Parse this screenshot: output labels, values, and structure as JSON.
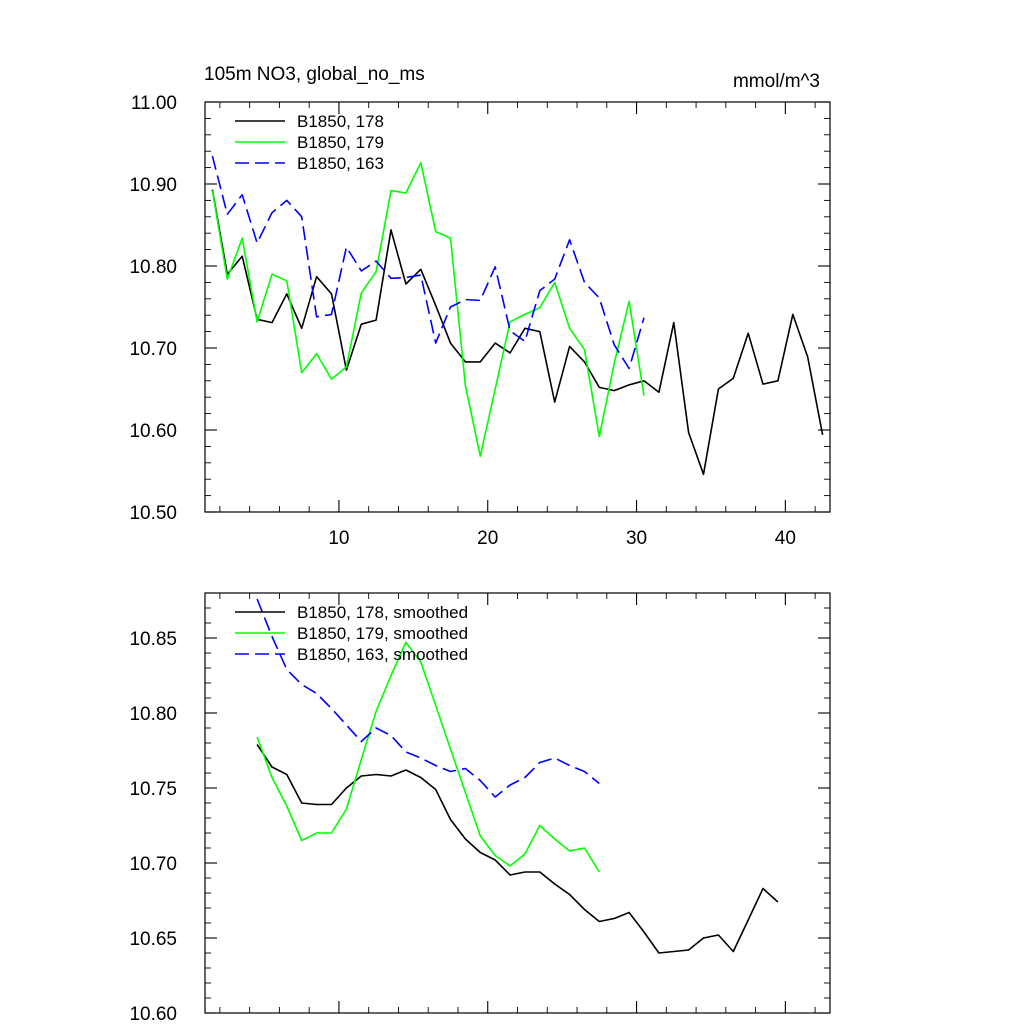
{
  "chart_data": [
    {
      "type": "line",
      "title": "105m NO3, global_no_ms",
      "units": "mmol/m^3",
      "xlim": [
        1,
        43
      ],
      "ylim": [
        10.5,
        11.0
      ],
      "xticks": [
        10,
        20,
        30,
        40
      ],
      "xtick_labels": [
        "10",
        "20",
        "30",
        "40"
      ],
      "yticks": [
        10.5,
        10.6,
        10.7,
        10.8,
        10.9,
        11.0
      ],
      "ytick_labels": [
        "10.50",
        "10.60",
        "10.70",
        "10.80",
        "10.90",
        "11.00"
      ],
      "series": [
        {
          "name": "B1850, 178",
          "color": "#000000",
          "dash": "solid",
          "x": [
            1.5,
            2.5,
            3.5,
            4.5,
            5.5,
            6.5,
            7.5,
            8.5,
            9.5,
            10.5,
            11.5,
            12.5,
            13.5,
            14.5,
            15.5,
            16.5,
            17.5,
            18.5,
            19.5,
            20.5,
            21.5,
            22.5,
            23.5,
            24.5,
            25.5,
            26.5,
            27.5,
            28.5,
            29.5,
            30.5,
            31.5,
            32.5,
            33.5,
            34.5,
            35.5,
            36.5,
            37.5,
            38.5,
            39.5,
            40.5,
            41.5,
            42.5
          ],
          "values": [
            10.893,
            10.79,
            10.812,
            10.735,
            10.731,
            10.766,
            10.724,
            10.787,
            10.766,
            10.673,
            10.729,
            10.734,
            10.844,
            10.778,
            10.796,
            10.752,
            10.706,
            10.683,
            10.683,
            10.706,
            10.694,
            10.724,
            10.72,
            10.634,
            10.702,
            10.683,
            10.652,
            10.648,
            10.655,
            10.66,
            10.646,
            10.731,
            10.597,
            10.546,
            10.65,
            10.663,
            10.718,
            10.656,
            10.66,
            10.741,
            10.689,
            10.594
          ]
        },
        {
          "name": "B1850, 179",
          "color": "#00ff00",
          "dash": "solid",
          "x": [
            1.5,
            2.5,
            3.5,
            4.5,
            5.5,
            6.5,
            7.5,
            8.5,
            9.5,
            10.5,
            11.5,
            12.5,
            13.5,
            14.5,
            15.5,
            16.5,
            17.5,
            18.5,
            19.5,
            20.5,
            21.5,
            22.5,
            23.5,
            24.5,
            25.5,
            26.5,
            27.5,
            28.5,
            29.5,
            30.5
          ],
          "values": [
            10.892,
            10.784,
            10.834,
            10.732,
            10.79,
            10.782,
            10.67,
            10.693,
            10.662,
            10.677,
            10.767,
            10.793,
            10.892,
            10.889,
            10.926,
            10.842,
            10.834,
            10.654,
            10.568,
            10.65,
            10.732,
            10.741,
            10.749,
            10.78,
            10.724,
            10.698,
            10.592,
            10.681,
            10.757,
            10.642
          ]
        },
        {
          "name": "B1850, 163",
          "color": "#0000ff",
          "dash": "dashed",
          "x": [
            1.5,
            2.5,
            3.5,
            4.5,
            5.5,
            6.5,
            7.5,
            8.5,
            9.5,
            10.5,
            11.5,
            12.5,
            13.5,
            14.5,
            15.5,
            16.5,
            17.5,
            18.5,
            19.5,
            20.5,
            21.5,
            22.5,
            23.5,
            24.5,
            25.5,
            26.5,
            27.5,
            28.5,
            29.5,
            30.5
          ],
          "values": [
            10.934,
            10.863,
            10.887,
            10.828,
            10.865,
            10.88,
            10.86,
            10.738,
            10.741,
            10.823,
            10.794,
            10.806,
            10.785,
            10.786,
            10.789,
            10.706,
            10.75,
            10.759,
            10.758,
            10.799,
            10.721,
            10.708,
            10.77,
            10.784,
            10.832,
            10.78,
            10.761,
            10.704,
            10.675,
            10.737
          ]
        }
      ]
    },
    {
      "type": "line",
      "title": "",
      "xlim": [
        1,
        43
      ],
      "ylim": [
        10.6,
        10.88
      ],
      "xticks": [
        10,
        20,
        30,
        40
      ],
      "yticks": [
        10.6,
        10.65,
        10.7,
        10.75,
        10.8,
        10.85
      ],
      "ytick_labels": [
        "10.60",
        "10.65",
        "10.70",
        "10.75",
        "10.80",
        "10.85"
      ],
      "series": [
        {
          "name": "B1850, 178, smoothed",
          "color": "#000000",
          "dash": "solid",
          "x": [
            4.5,
            5.5,
            6.5,
            7.5,
            8.5,
            9.5,
            10.5,
            11.5,
            12.5,
            13.5,
            14.5,
            15.5,
            16.5,
            17.5,
            18.5,
            19.5,
            20.5,
            21.5,
            22.5,
            23.5,
            24.5,
            25.5,
            26.5,
            27.5,
            28.5,
            29.5,
            30.5,
            31.5,
            32.5,
            33.5,
            34.5,
            35.5,
            36.5,
            37.5,
            38.5,
            39.5
          ],
          "values": [
            10.779,
            10.764,
            10.759,
            10.74,
            10.739,
            10.739,
            10.75,
            10.758,
            10.759,
            10.758,
            10.762,
            10.757,
            10.749,
            10.729,
            10.716,
            10.707,
            10.702,
            10.692,
            10.694,
            10.694,
            10.686,
            10.679,
            10.669,
            10.661,
            10.663,
            10.667,
            10.654,
            10.64,
            10.641,
            10.642,
            10.65,
            10.652,
            10.641,
            10.662,
            10.683,
            10.674
          ]
        },
        {
          "name": "B1850, 179, smoothed",
          "color": "#00ff00",
          "dash": "solid",
          "x": [
            4.5,
            5.5,
            6.5,
            7.5,
            8.5,
            9.5,
            10.5,
            11.5,
            12.5,
            13.5,
            14.5,
            15.5,
            16.5,
            17.5,
            18.5,
            19.5,
            20.5,
            21.5,
            22.5,
            23.5,
            24.5,
            25.5,
            26.5,
            27.5
          ],
          "values": [
            10.784,
            10.757,
            10.738,
            10.715,
            10.72,
            10.72,
            10.736,
            10.769,
            10.801,
            10.825,
            10.847,
            10.834,
            10.805,
            10.776,
            10.747,
            10.718,
            10.705,
            10.698,
            10.706,
            10.725,
            10.716,
            10.708,
            10.71,
            10.694
          ]
        },
        {
          "name": "B1850, 163, smoothed",
          "color": "#0000ff",
          "dash": "dashed",
          "x": [
            4.5,
            5.5,
            6.5,
            7.5,
            8.5,
            9.5,
            10.5,
            11.5,
            12.5,
            13.5,
            14.5,
            15.5,
            16.5,
            17.5,
            18.5,
            19.5,
            20.5,
            21.5,
            22.5,
            23.5,
            24.5,
            25.5,
            26.5,
            27.5
          ],
          "values": [
            10.876,
            10.851,
            10.829,
            10.819,
            10.813,
            10.803,
            10.792,
            10.781,
            10.79,
            10.785,
            10.774,
            10.77,
            10.765,
            10.761,
            10.763,
            10.755,
            10.744,
            10.752,
            10.757,
            10.767,
            10.77,
            10.765,
            10.761,
            10.753
          ]
        }
      ]
    }
  ]
}
